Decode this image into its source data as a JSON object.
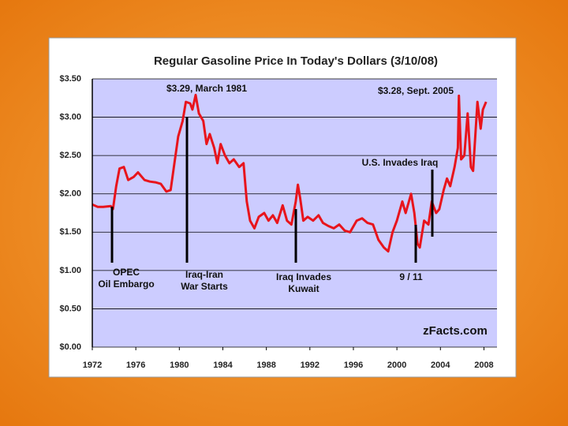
{
  "chart_data": {
    "type": "line",
    "title": "Regular Gasoline Price In Today's Dollars (3/10/08)",
    "x": [
      1972.0,
      1972.5,
      1973.0,
      1973.7,
      1973.9,
      1974.2,
      1974.5,
      1974.9,
      1975.3,
      1975.8,
      1976.2,
      1976.8,
      1977.3,
      1977.8,
      1978.3,
      1978.8,
      1979.2,
      1979.5,
      1979.9,
      1980.3,
      1980.6,
      1981.0,
      1981.2,
      1981.5,
      1981.8,
      1982.2,
      1982.5,
      1982.8,
      1983.2,
      1983.5,
      1983.8,
      1984.2,
      1984.6,
      1985.0,
      1985.5,
      1985.9,
      1986.2,
      1986.5,
      1986.9,
      1987.3,
      1987.8,
      1988.2,
      1988.6,
      1989.0,
      1989.5,
      1989.9,
      1990.3,
      1990.7,
      1990.9,
      1991.1,
      1991.4,
      1991.8,
      1992.3,
      1992.8,
      1993.2,
      1993.7,
      1994.2,
      1994.7,
      1995.2,
      1995.7,
      1996.3,
      1996.8,
      1997.3,
      1997.8,
      1998.3,
      1998.8,
      1999.2,
      1999.6,
      2000.0,
      2000.5,
      2000.8,
      2001.3,
      2001.6,
      2001.9,
      2002.1,
      2002.5,
      2002.9,
      2003.2,
      2003.6,
      2003.9,
      2004.3,
      2004.6,
      2004.9,
      2005.3,
      2005.6,
      2005.7,
      2005.9,
      2006.2,
      2006.5,
      2006.8,
      2007.0,
      2007.4,
      2007.7,
      2007.9,
      2008.2
    ],
    "values": [
      1.86,
      1.83,
      1.83,
      1.84,
      1.8,
      2.1,
      2.33,
      2.35,
      2.18,
      2.22,
      2.28,
      2.18,
      2.16,
      2.15,
      2.13,
      2.03,
      2.05,
      2.35,
      2.75,
      2.95,
      3.2,
      3.18,
      3.1,
      3.29,
      3.05,
      2.95,
      2.65,
      2.78,
      2.6,
      2.4,
      2.65,
      2.5,
      2.4,
      2.45,
      2.35,
      2.4,
      1.9,
      1.65,
      1.55,
      1.7,
      1.75,
      1.65,
      1.72,
      1.62,
      1.85,
      1.65,
      1.6,
      1.9,
      2.12,
      1.95,
      1.65,
      1.7,
      1.65,
      1.72,
      1.62,
      1.58,
      1.55,
      1.6,
      1.52,
      1.5,
      1.65,
      1.68,
      1.62,
      1.6,
      1.4,
      1.3,
      1.25,
      1.5,
      1.65,
      1.9,
      1.75,
      2.0,
      1.75,
      1.35,
      1.3,
      1.65,
      1.6,
      1.9,
      1.75,
      1.8,
      2.05,
      2.2,
      2.1,
      2.35,
      2.6,
      3.28,
      2.45,
      2.5,
      3.05,
      2.35,
      2.3,
      3.2,
      2.85,
      3.1,
      3.2
    ],
    "color": "#e8141c",
    "xlim": [
      1972,
      2009.2
    ],
    "xticks": [
      1972,
      1976,
      1980,
      1984,
      1988,
      1992,
      1996,
      2000,
      2004,
      2008
    ],
    "ylim": [
      0,
      3.5
    ],
    "yticks": [
      {
        "value": 0,
        "label": "$0.00"
      },
      {
        "value": 0.5,
        "label": "$0.50"
      },
      {
        "value": 1,
        "label": "$1.00"
      },
      {
        "value": 1.5,
        "label": "$1.50"
      },
      {
        "value": 2,
        "label": "$2.00"
      },
      {
        "value": 2.5,
        "label": "$2.50"
      },
      {
        "value": 3,
        "label": "$3.00"
      },
      {
        "value": 3.5,
        "label": "$3.50"
      }
    ],
    "grid": true,
    "annotations": [
      [
        "$3.29, March 1981"
      ],
      [
        "$3.28, Sept. 2005"
      ],
      [
        "U.S. Invades Iraq"
      ],
      [
        "OPEC",
        "Oil Embargo"
      ],
      [
        "Iraq-Iran",
        "War Starts"
      ],
      [
        "Iraq Invades",
        "Kuwait"
      ],
      [
        "9 / 11"
      ],
      [
        "zFacts.com"
      ]
    ]
  }
}
